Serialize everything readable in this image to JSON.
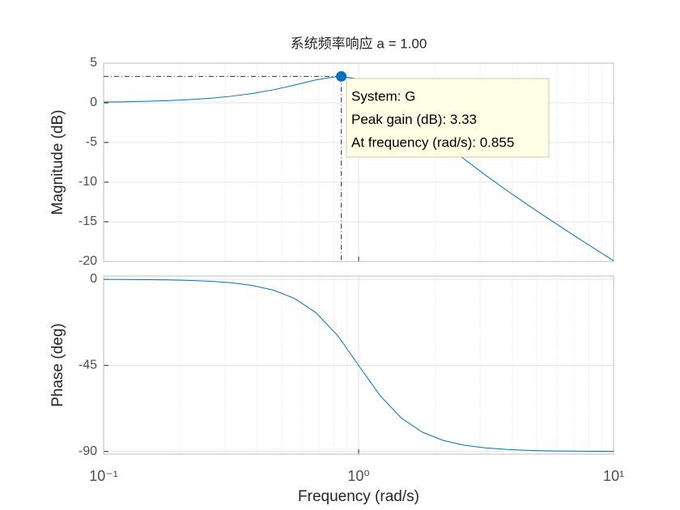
{
  "chart_data": [
    {
      "type": "line",
      "title": "系统频率响应 a = 1.00",
      "ylabel": "Magnitude (dB)",
      "x": [
        0.1,
        0.1212,
        0.1468,
        0.1778,
        0.2154,
        0.261,
        0.3162,
        0.3831,
        0.4642,
        0.5623,
        0.6813,
        0.8254,
        0.855,
        1,
        1.2115,
        1.4678,
        1.7783,
        2.1544,
        2.6102,
        3.1623,
        3.8312,
        4.6416,
        5.6234,
        6.8129,
        8.254,
        10
      ],
      "series": [
        {
          "color": "#0072bd",
          "values": [
            0.086,
            0.126,
            0.186,
            0.271,
            0.393,
            0.571,
            0.822,
            1.175,
            1.651,
            2.25,
            2.897,
            3.319,
            3.33,
            3.01,
            1.653,
            -0.435,
            -2.749,
            -5.015,
            -7.157,
            -9.177,
            -11.095,
            -12.94,
            -14.73,
            -16.482,
            -18.207,
            -19.914
          ]
        }
      ],
      "xlim": [
        0.1,
        10
      ],
      "xticks": [
        0.1,
        1,
        10
      ],
      "xminorticks": [
        0.2,
        0.3,
        0.4,
        0.5,
        0.6,
        0.7,
        0.8,
        0.9,
        2,
        3,
        4,
        5,
        6,
        7,
        8,
        9
      ],
      "log_x": true,
      "ylim": [
        -20,
        5
      ],
      "yticks": [
        -20,
        -15,
        -10,
        -5,
        0,
        5
      ],
      "grid": true,
      "datatip": {
        "x": 0.855,
        "y": 3.33,
        "lines": [
          "System: G",
          "Peak gain (dB): 3.33",
          "At frequency (rad/s): 0.855"
        ]
      }
    },
    {
      "type": "line",
      "ylabel": "Phase (deg)",
      "xlabel": "Frequency  (rad/s)",
      "x": [
        0.1,
        0.1212,
        0.1468,
        0.1778,
        0.2154,
        0.261,
        0.3162,
        0.3831,
        0.4642,
        0.5623,
        0.6813,
        0.8254,
        0.855,
        1,
        1.2115,
        1.4678,
        1.7783,
        2.1544,
        2.6102,
        3.1623,
        3.8312,
        4.6416,
        5.6234,
        6.8129,
        8.254,
        10
      ],
      "series": [
        {
          "color": "#0072bd",
          "values": [
            -0.06,
            -0.1,
            -0.18,
            -0.33,
            -0.57,
            -1.02,
            -1.8,
            -3.21,
            -5.71,
            -10.06,
            -17.53,
            -29.32,
            -32.01,
            -45,
            -60.65,
            -72.44,
            -79.93,
            -84.3,
            -86.78,
            -88.19,
            -88.98,
            -89.43,
            -89.68,
            -89.82,
            -89.9,
            -89.94
          ]
        }
      ],
      "xlim": [
        0.1,
        10
      ],
      "xticks": [
        {
          "value": 0.1,
          "label": "10⁻¹"
        },
        {
          "value": 1,
          "label": "10⁰"
        },
        {
          "value": 10,
          "label": "10¹"
        }
      ],
      "xminorticks": [
        0.2,
        0.3,
        0.4,
        0.5,
        0.6,
        0.7,
        0.8,
        0.9,
        2,
        3,
        4,
        5,
        6,
        7,
        8,
        9
      ],
      "log_x": true,
      "ylim": [
        -91.4,
        1.7
      ],
      "yticks": [
        -90,
        -45,
        0
      ],
      "grid": true
    }
  ]
}
